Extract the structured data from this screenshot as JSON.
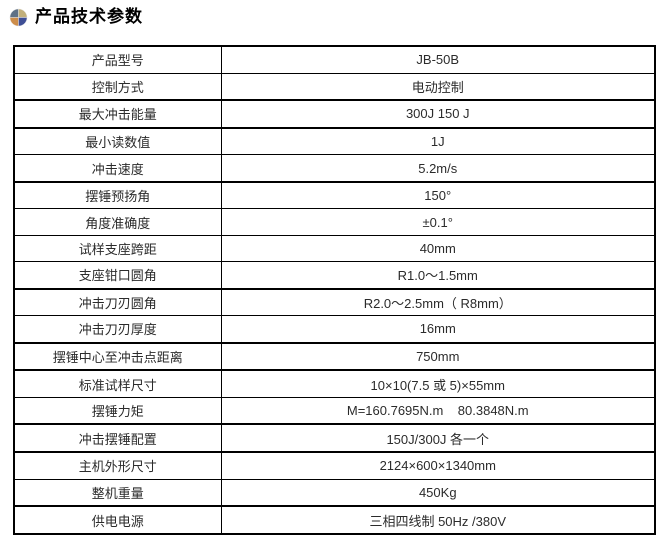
{
  "header": {
    "title": "产品技术参数",
    "icon": "sphere-pie-icon",
    "icon_colors": {
      "top_left": "#5f7186",
      "top_right": "#c2b07b",
      "bottom_left": "#cd8d4a",
      "bottom_right": "#3f4f96"
    }
  },
  "table": {
    "rows": [
      {
        "label": "产品型号",
        "value": "JB-50B"
      },
      {
        "label": "控制方式",
        "value": "电动控制"
      },
      {
        "label": "最大冲击能量",
        "value": "300J 150 J"
      },
      {
        "label": "最小读数值",
        "value": "1J"
      },
      {
        "label": "冲击速度",
        "value": "5.2m/s"
      },
      {
        "label": "摆锤预扬角",
        "value": "150°"
      },
      {
        "label": "角度准确度",
        "value": "±0.1°"
      },
      {
        "label": "试样支座跨距",
        "value": "40mm"
      },
      {
        "label": "支座钳口圆角",
        "value": "R1.0～1.5mm"
      },
      {
        "label": "冲击刀刃圆角",
        "value": "R2.0～2.5mm（ R8mm）"
      },
      {
        "label": "冲击刀刃厚度",
        "value": "16mm"
      },
      {
        "label": "摆锤中心至冲击点距离",
        "value": "750mm"
      },
      {
        "label": "标准试样尺寸",
        "value": "10×10(7.5 或 5)×55mm"
      },
      {
        "label": "摆锤力矩",
        "value": "M=160.7695N.m    80.3848N.m"
      },
      {
        "label": "冲击摆锤配置",
        "value": "150J/300J 各一个"
      },
      {
        "label": "主机外形尺寸",
        "value": "2124×600×1340mm"
      },
      {
        "label": "整机重量",
        "value": "450Kg"
      },
      {
        "label": "供电电源",
        "value": "三相四线制 50Hz /380V"
      }
    ]
  }
}
